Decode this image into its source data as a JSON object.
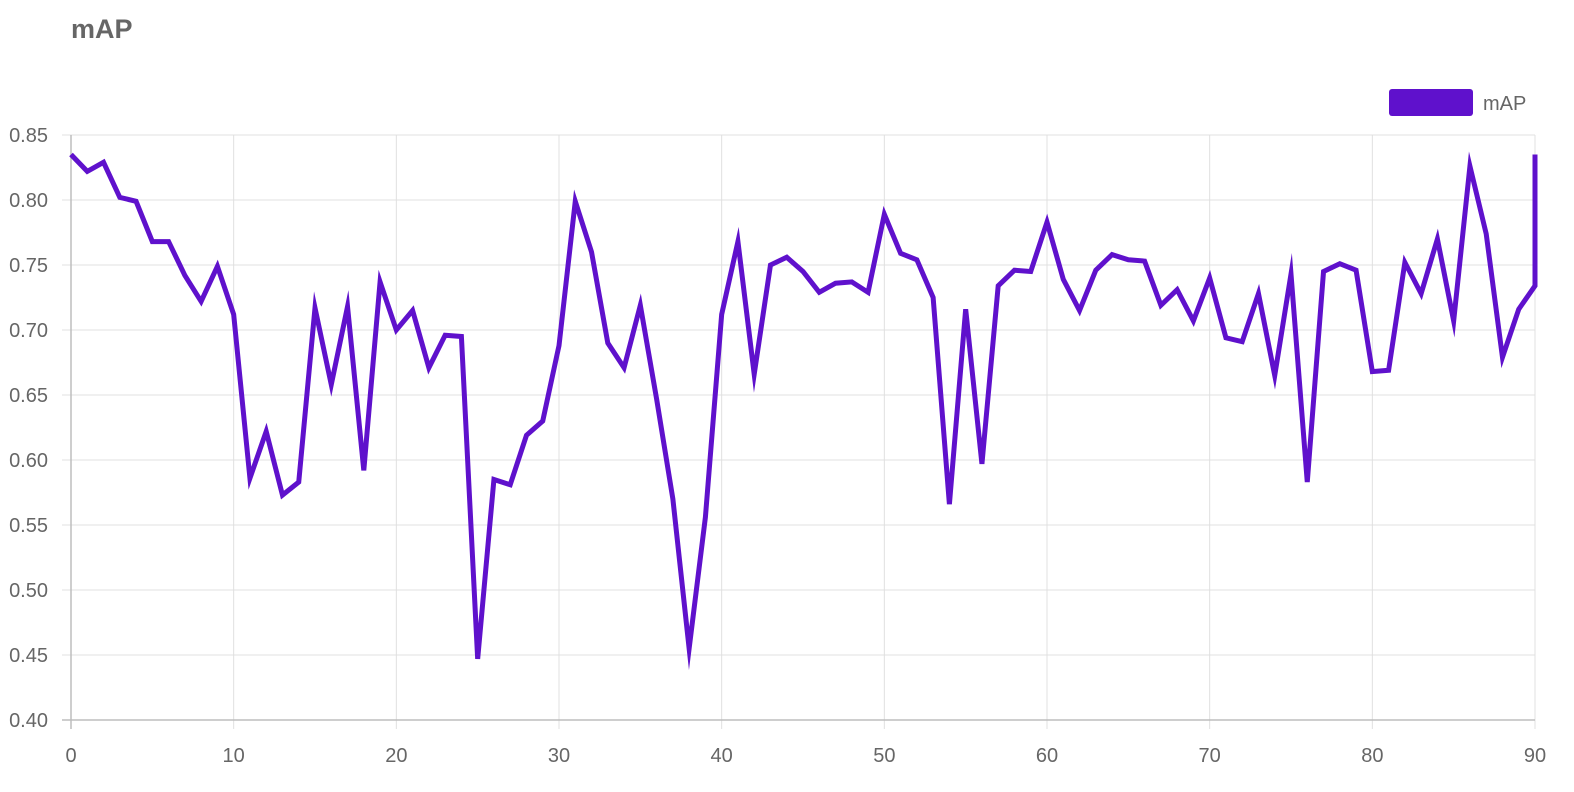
{
  "chart_data": {
    "type": "line",
    "title": "mAP",
    "xlabel": "",
    "ylabel": "",
    "xlim": [
      0,
      90
    ],
    "ylim": [
      0.4,
      0.85
    ],
    "x_ticks": [
      0,
      10,
      20,
      30,
      40,
      50,
      60,
      70,
      80,
      90
    ],
    "y_ticks": [
      0.85,
      0.8,
      0.75,
      0.7,
      0.65,
      0.6,
      0.55,
      0.5,
      0.45,
      0.4
    ],
    "y_tick_labels": [
      "0.85",
      "0.80",
      "0.75",
      "0.70",
      "0.65",
      "0.60",
      "0.55",
      "0.50",
      "0.45",
      "0.40"
    ],
    "grid": true,
    "legend_position": "top-right",
    "x": [
      0,
      1,
      2,
      3,
      4,
      5,
      6,
      7,
      8,
      9,
      10,
      11,
      12,
      13,
      14,
      15,
      16,
      17,
      18,
      19,
      20,
      21,
      22,
      23,
      24,
      25,
      26,
      27,
      28,
      29,
      30,
      31,
      32,
      33,
      34,
      35,
      36,
      37,
      38,
      39,
      40,
      41,
      42,
      43,
      44,
      45,
      46,
      47,
      48,
      49,
      50,
      51,
      52,
      53,
      54,
      55,
      56,
      57,
      58,
      59,
      60,
      61,
      62,
      63,
      64,
      65,
      66,
      67,
      68,
      69,
      70,
      71,
      72,
      73,
      74,
      75,
      76,
      77,
      78,
      79,
      80,
      81,
      82,
      83,
      84,
      85,
      86,
      87,
      88,
      89,
      90,
      90
    ],
    "series": [
      {
        "name": "mAP",
        "color": "#5f11cc",
        "values": [
          0.835,
          0.822,
          0.829,
          0.802,
          0.799,
          0.768,
          0.768,
          0.742,
          0.722,
          0.749,
          0.712,
          0.586,
          0.622,
          0.573,
          0.583,
          0.717,
          0.658,
          0.718,
          0.592,
          0.737,
          0.7,
          0.715,
          0.671,
          0.696,
          0.695,
          0.447,
          0.585,
          0.581,
          0.619,
          0.63,
          0.688,
          0.799,
          0.76,
          0.69,
          0.671,
          0.719,
          0.647,
          0.57,
          0.455,
          0.556,
          0.712,
          0.768,
          0.666,
          0.75,
          0.756,
          0.745,
          0.729,
          0.736,
          0.737,
          0.729,
          0.789,
          0.759,
          0.754,
          0.725,
          0.566,
          0.716,
          0.597,
          0.734,
          0.746,
          0.745,
          0.783,
          0.739,
          0.715,
          0.746,
          0.758,
          0.754,
          0.753,
          0.719,
          0.731,
          0.707,
          0.74,
          0.694,
          0.691,
          0.728,
          0.665,
          0.743,
          0.583,
          0.745,
          0.751,
          0.746,
          0.668,
          0.669,
          0.752,
          0.728,
          0.77,
          0.707,
          0.826,
          0.774,
          0.679,
          0.716,
          0.734,
          0.835
        ]
      }
    ]
  }
}
